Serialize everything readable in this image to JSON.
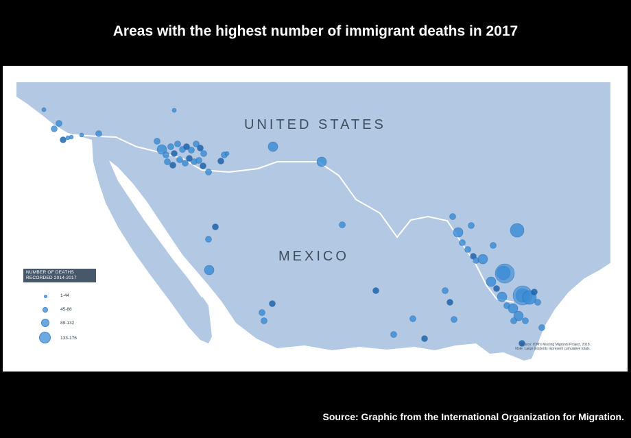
{
  "title": "Areas with the highest number of immigrant deaths in 2017",
  "source_caption": "Source: Graphic from the International Organization for Migration.",
  "map": {
    "country_labels": {
      "us": "UNITED STATES",
      "mexico": "MEXICO"
    },
    "colors": {
      "land": "#b3c8e3",
      "background": "#ffffff",
      "border_line": "#ffffff",
      "dot_fill": "#3b8cd6",
      "dot_dark": "#1a5fa8",
      "legend_header": "#47586a"
    },
    "legend": {
      "heading_line1": "NUMBER OF DEATHS",
      "heading_line2": "RECORDED 2014-2017",
      "entries": [
        {
          "label": "1-44",
          "size_class": "xs"
        },
        {
          "label": "45-88",
          "size_class": "s"
        },
        {
          "label": "89-132",
          "size_class": "m"
        },
        {
          "label": "133-176",
          "size_class": "l"
        }
      ]
    },
    "note_line1": "Source: IOM's Missing Migrants Project, 2018.",
    "note_line2": "Note: Large incidents represent cumulative totals."
  }
}
